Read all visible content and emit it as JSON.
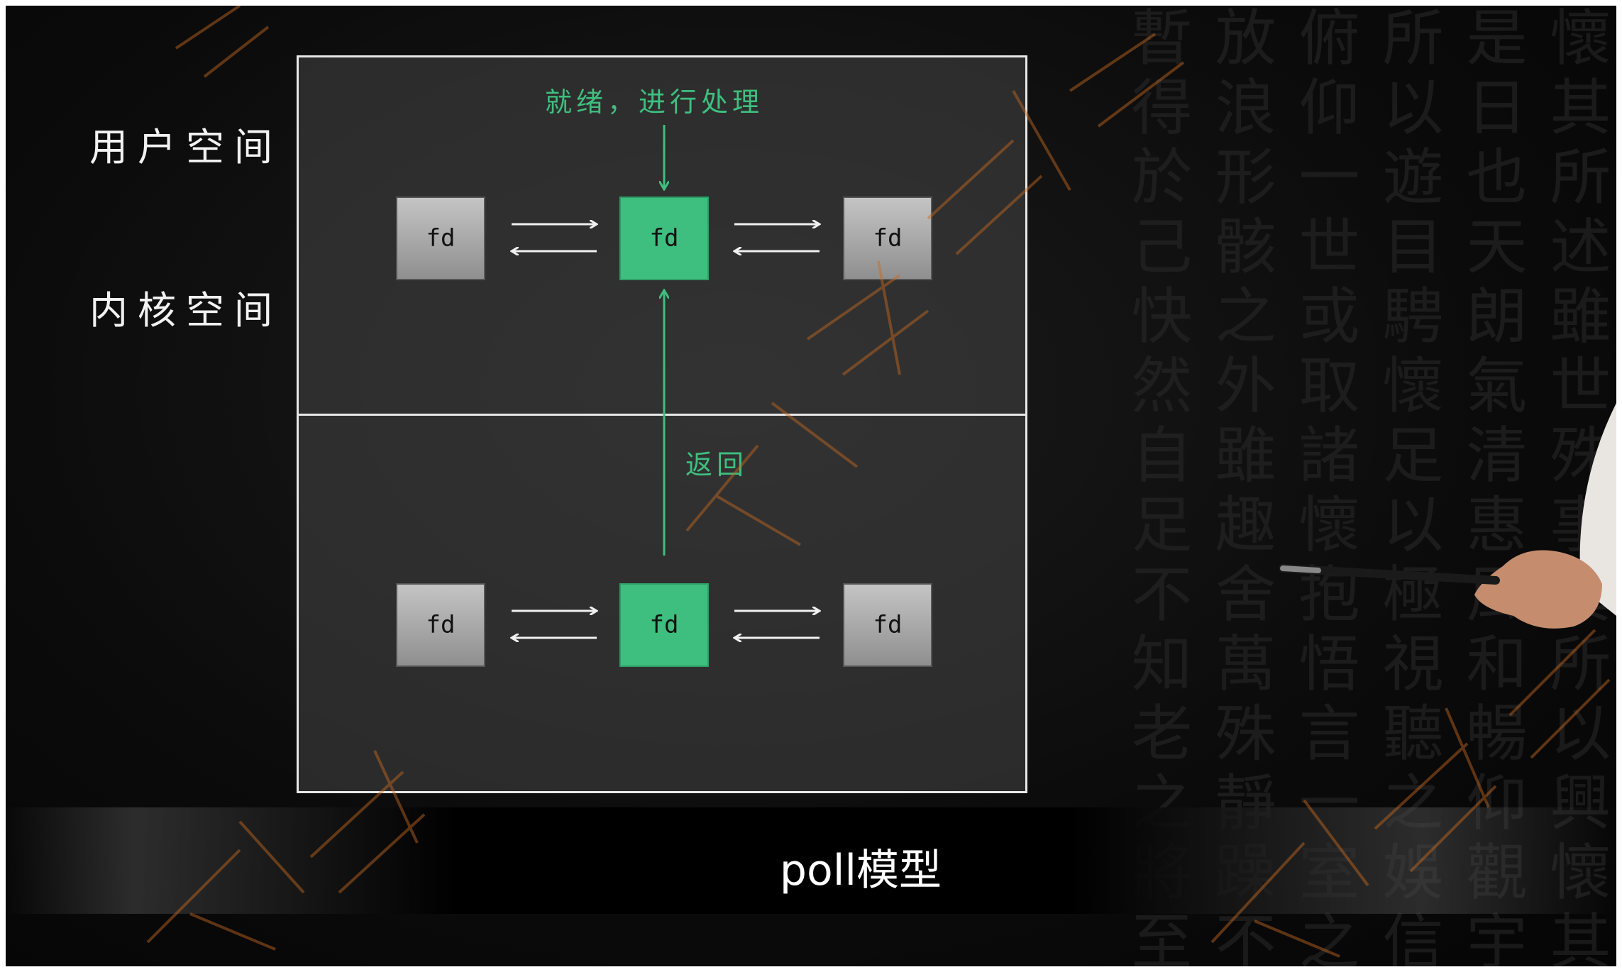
{
  "labels": {
    "user_space": "用户空间",
    "kernel_space": "内核空间"
  },
  "diagram": {
    "top_annotation": "就绪，进行处理",
    "return_annotation": "返回",
    "user_row": [
      "fd",
      "fd",
      "fd"
    ],
    "kernel_row": [
      "fd",
      "fd",
      "fd"
    ]
  },
  "caption": "poll模型",
  "colors": {
    "accent_green": "#3fbf7f",
    "box_gray": "#a8a8a8",
    "border": "#e8e8e8",
    "watermark": "#c96a1e"
  },
  "icons": {
    "arrows": "double-arrow-icon",
    "pointer": "pen-pointer-icon"
  }
}
